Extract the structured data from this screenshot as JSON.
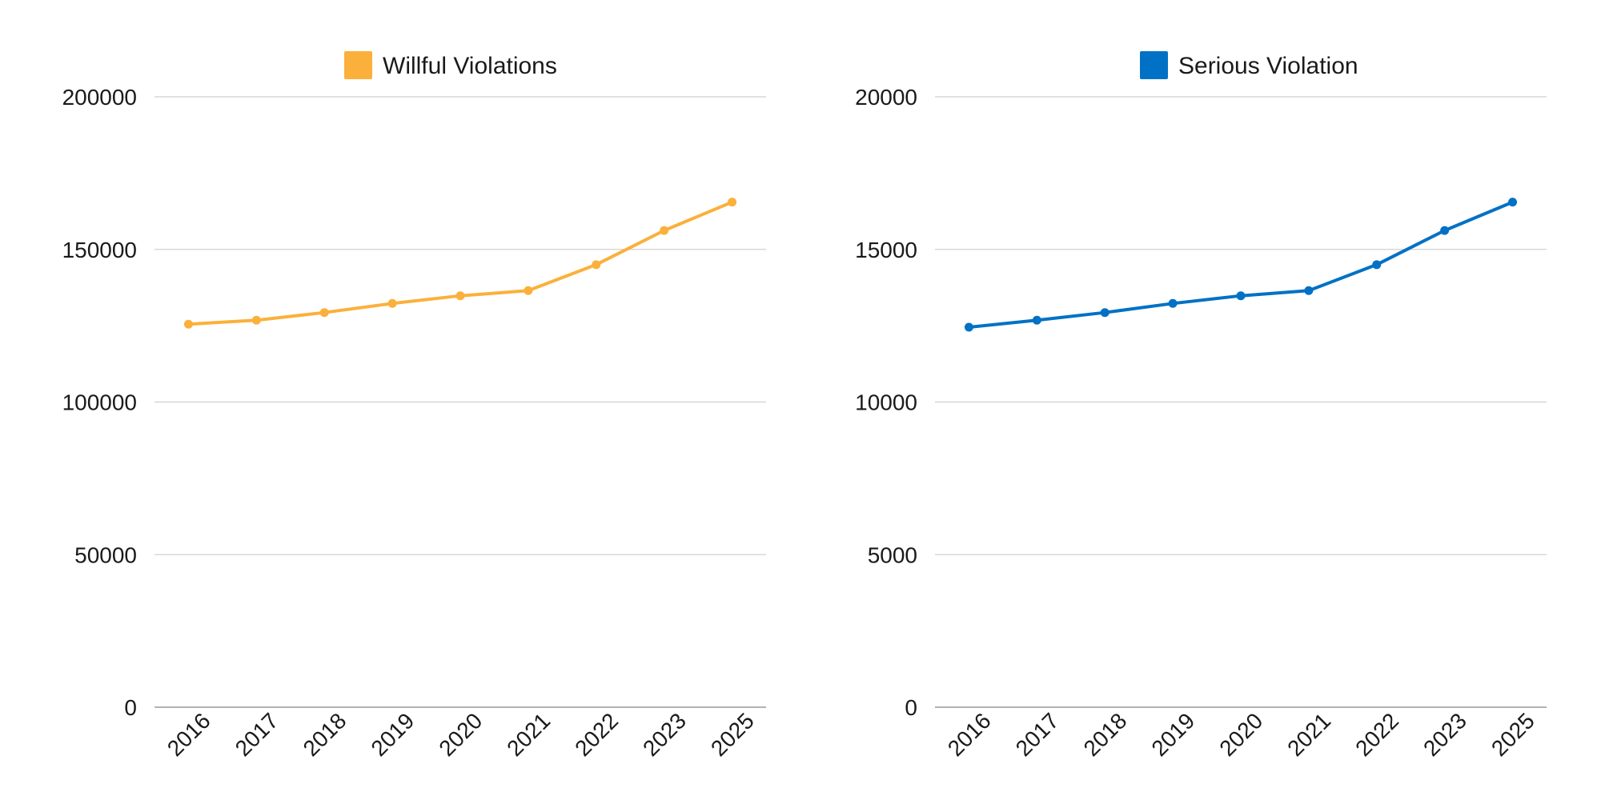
{
  "chart_data": [
    {
      "type": "line",
      "categories": [
        "2016",
        "2017",
        "2018",
        "2019",
        "2020",
        "2021",
        "2022",
        "2023",
        "2025"
      ],
      "series": [
        {
          "name": "Willful Violations",
          "color": "#FBB03B",
          "values": [
            125500,
            126800,
            129300,
            132300,
            134800,
            136500,
            145000,
            156200,
            165500
          ]
        }
      ],
      "y_ticks": [
        "0",
        "50000",
        "100000",
        "150000",
        "200000"
      ],
      "ylim": [
        0,
        200000
      ],
      "grid": true,
      "legend_position": "top-center"
    },
    {
      "type": "line",
      "categories": [
        "2016",
        "2017",
        "2018",
        "2019",
        "2020",
        "2021",
        "2022",
        "2023",
        "2025"
      ],
      "series": [
        {
          "name": "Serious Violation",
          "color": "#0071C5",
          "values": [
            12450,
            12680,
            12930,
            13230,
            13480,
            13650,
            14500,
            15620,
            16550
          ]
        }
      ],
      "y_ticks": [
        "0",
        "5000",
        "10000",
        "15000",
        "20000"
      ],
      "ylim": [
        0,
        20000
      ],
      "grid": true,
      "legend_position": "top-center"
    }
  ]
}
